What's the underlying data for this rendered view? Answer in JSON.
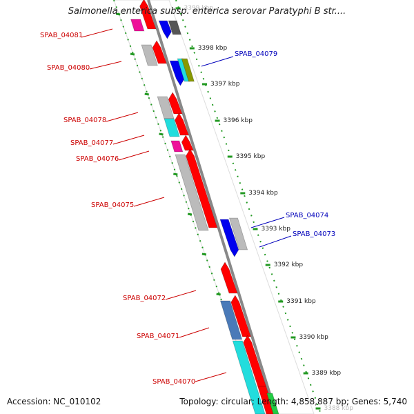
{
  "title": "Salmonella enterica subsp. enterica serovar Paratyphi B str....",
  "footer": {
    "accession": "Accession: NC_010102",
    "summary": "Topology: circular; Length: 4,858,887 bp; Genes: 5,740"
  },
  "colors": {
    "label_red": "#cc0000",
    "label_blue": "#0000bb",
    "gene_red": "#ff0000",
    "gene_blue": "#0000ee",
    "gene_gray": "#bbbbbb",
    "gene_cyan": "#22dddd",
    "gene_magenta": "#ee1199",
    "gene_olive": "#889900",
    "gene_steel": "#4a7ab8",
    "gene_green": "#22cc44",
    "backbone": "#888888",
    "dots": "#229922"
  },
  "axis_ticks": [
    {
      "label": "3399 kbp"
    },
    {
      "label": "3398 kbp"
    },
    {
      "label": "3397 kbp"
    },
    {
      "label": "3396 kbp"
    },
    {
      "label": "3395 kbp"
    },
    {
      "label": "3394 kbp"
    },
    {
      "label": "3393 kbp"
    },
    {
      "label": "3392 kbp"
    },
    {
      "label": "3391 kbp"
    },
    {
      "label": "3390 kbp"
    },
    {
      "label": "3389 kbp"
    },
    {
      "label": "3388 kbp"
    }
  ],
  "genes": [
    {
      "label": "SPAB_04081",
      "strand": "minus"
    },
    {
      "label": "SPAB_04080",
      "strand": "minus"
    },
    {
      "label": "SPAB_04079",
      "strand": "plus"
    },
    {
      "label": "SPAB_04078",
      "strand": "minus"
    },
    {
      "label": "SPAB_04077",
      "strand": "minus"
    },
    {
      "label": "SPAB_04076",
      "strand": "minus"
    },
    {
      "label": "SPAB_04075",
      "strand": "minus"
    },
    {
      "label": "SPAB_04074",
      "strand": "plus"
    },
    {
      "label": "SPAB_04073",
      "strand": "plus"
    },
    {
      "label": "SPAB_04072",
      "strand": "minus"
    },
    {
      "label": "SPAB_04071",
      "strand": "minus"
    },
    {
      "label": "SPAB_04070",
      "strand": "minus"
    }
  ]
}
